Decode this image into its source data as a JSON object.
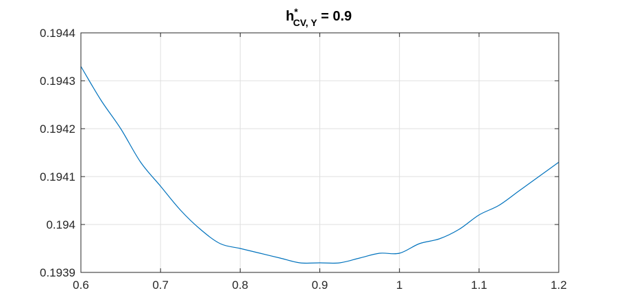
{
  "chart_data": {
    "type": "line",
    "title": {
      "main": "h",
      "superscript": "*",
      "subscript": "CV, Y",
      "suffix": " = 0.9"
    },
    "xlabel": "",
    "ylabel": "",
    "xlim": [
      0.6,
      1.2
    ],
    "ylim": [
      0.1939,
      0.1944
    ],
    "x_ticks": [
      0.6,
      0.7,
      0.8,
      0.9,
      1.0,
      1.1,
      1.2
    ],
    "x_tick_labels": [
      "0.6",
      "0.7",
      "0.8",
      "0.9",
      "1",
      "1.1",
      "1.2"
    ],
    "y_ticks": [
      0.1939,
      0.194,
      0.1941,
      0.1942,
      0.1943,
      0.1944
    ],
    "y_tick_labels": [
      "0.1939",
      "0.194",
      "0.1941",
      "0.1942",
      "0.1943",
      "0.1944"
    ],
    "grid": true,
    "series": [
      {
        "color": "#0072BD",
        "x": [
          0.6,
          0.625,
          0.65,
          0.675,
          0.7,
          0.725,
          0.75,
          0.775,
          0.8,
          0.825,
          0.85,
          0.875,
          0.9,
          0.925,
          0.95,
          0.975,
          1.0,
          1.025,
          1.05,
          1.075,
          1.1,
          1.125,
          1.15,
          1.175,
          1.2
        ],
        "y": [
          0.19433,
          0.19426,
          0.1942,
          0.19413,
          0.19408,
          0.19403,
          0.19399,
          0.19396,
          0.19395,
          0.19394,
          0.19393,
          0.19392,
          0.19392,
          0.19392,
          0.19393,
          0.19394,
          0.19394,
          0.19396,
          0.19397,
          0.19399,
          0.19402,
          0.19404,
          0.19407,
          0.1941,
          0.19413
        ]
      }
    ]
  }
}
